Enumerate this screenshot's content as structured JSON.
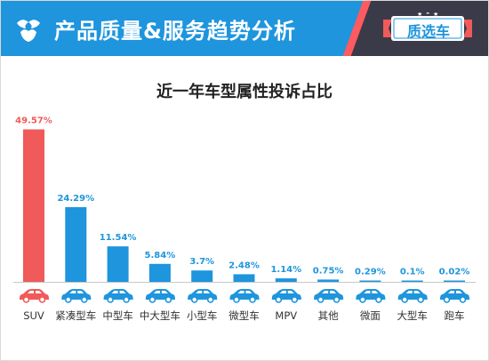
{
  "header": {
    "title": "产品质量&服务趋势分析",
    "logo_icon": "brand-logo-icon",
    "badge_label": "质选车",
    "colors": {
      "bar": "#1e95dd",
      "accent": "#ff5a5f",
      "dark": "#3a3a48"
    }
  },
  "chart_data": {
    "type": "bar",
    "title": "近一年车型属性投诉占比",
    "xlabel": "",
    "ylabel": "",
    "categories": [
      "SUV",
      "紧凑型车",
      "中型车",
      "中大型车",
      "小型车",
      "微型车",
      "MPV",
      "其他",
      "微面",
      "大型车",
      "跑车"
    ],
    "values": [
      49.57,
      24.29,
      11.54,
      5.84,
      3.7,
      2.48,
      1.14,
      0.75,
      0.29,
      0.1,
      0.02
    ],
    "value_labels": [
      "49.57%",
      "24.29%",
      "11.54%",
      "5.84%",
      "3.7%",
      "2.48%",
      "1.14%",
      "0.75%",
      "0.29%",
      "0.1%",
      "0.02%"
    ],
    "unit": "%",
    "ylim": [
      0,
      50
    ],
    "grid": false,
    "highlight_index": 0,
    "colors": {
      "default": "#1e95dd",
      "highlight": "#f05a5a"
    },
    "category_icon": "car-icon"
  }
}
